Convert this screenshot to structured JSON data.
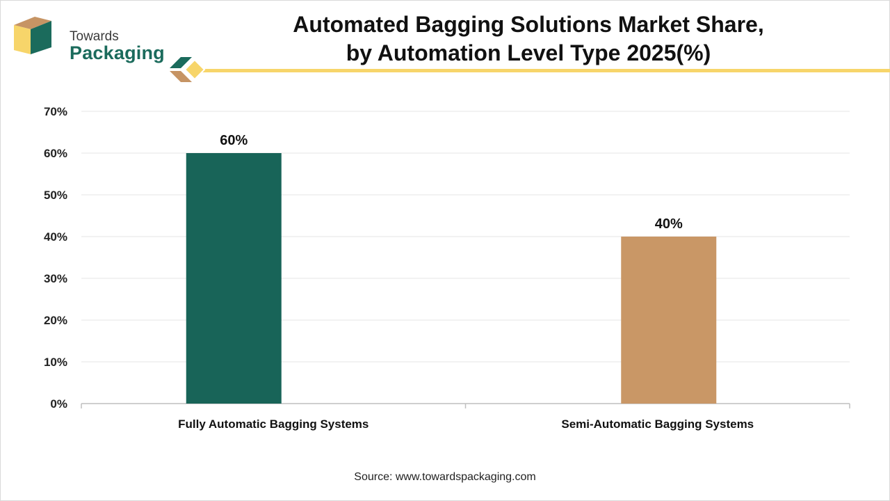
{
  "brand": {
    "line1": "Towards",
    "line2": "Packaging",
    "colors": {
      "green": "#1b6b5c",
      "tan": "#c69464",
      "yellow": "#f7d56a"
    }
  },
  "chart_data": {
    "type": "bar",
    "title": "Automated Bagging Solutions Market Share,",
    "subtitle": "by Automation Level Type 2025(%)",
    "categories": [
      "Fully Automatic Bagging Systems",
      "Semi-Automatic Bagging Systems"
    ],
    "values": [
      60,
      40
    ],
    "data_labels": [
      "60%",
      "40%"
    ],
    "colors": [
      "#186458",
      "#c99766"
    ],
    "ylim": [
      0,
      70
    ],
    "yticks": [
      0,
      10,
      20,
      30,
      40,
      50,
      60,
      70
    ],
    "ytick_labels": [
      "0%",
      "10%",
      "20%",
      "30%",
      "40%",
      "50%",
      "60%",
      "70%"
    ],
    "grid": true,
    "legend": "none"
  },
  "footer": {
    "source": "Source: www.towardspackaging.com"
  }
}
